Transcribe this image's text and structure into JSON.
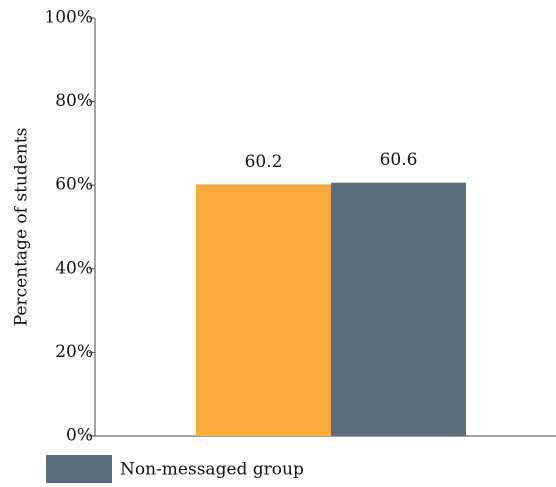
{
  "chart_data": {
    "type": "bar",
    "y_label": "Percentage of students",
    "categories": [
      null
    ],
    "series": [
      {
        "color": "#f9ac3b",
        "values": [
          60.2
        ]
      },
      {
        "name": "Non-messaged group",
        "color": "#596d7c",
        "values": [
          60.6
        ]
      }
    ],
    "ylim": [
      0,
      100
    ],
    "yticks": [
      {
        "value": 0,
        "label": "0%"
      },
      {
        "value": 20,
        "label": "20%"
      },
      {
        "value": 40,
        "label": "40%"
      },
      {
        "value": 60,
        "label": "60%"
      },
      {
        "value": 80,
        "label": "80%"
      },
      {
        "value": 100,
        "label": "100%"
      }
    ],
    "grid": false
  }
}
